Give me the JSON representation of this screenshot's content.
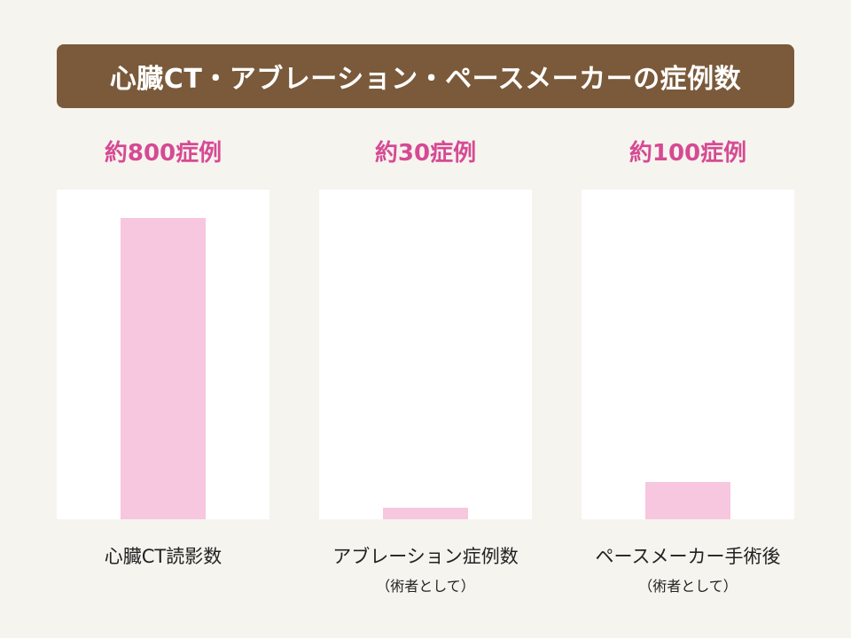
{
  "chart_data": {
    "type": "bar",
    "title": "心臓CT・アブレーション・ペースメーカーの症例数",
    "categories": [
      "心臓CT読影数",
      "アブレーション症例数",
      "ペースメーカー手術後"
    ],
    "category_subtitles": [
      "",
      "（術者として）",
      "（術者として）"
    ],
    "values": [
      800,
      30,
      100
    ],
    "value_labels": [
      "約800症例",
      "約30症例",
      "約100症例"
    ],
    "bar_color": "#f7c6df"
  },
  "colors": {
    "title_bar": "#7a5a3a",
    "value_label": "#d64a93",
    "background": "#f6f4ef"
  }
}
